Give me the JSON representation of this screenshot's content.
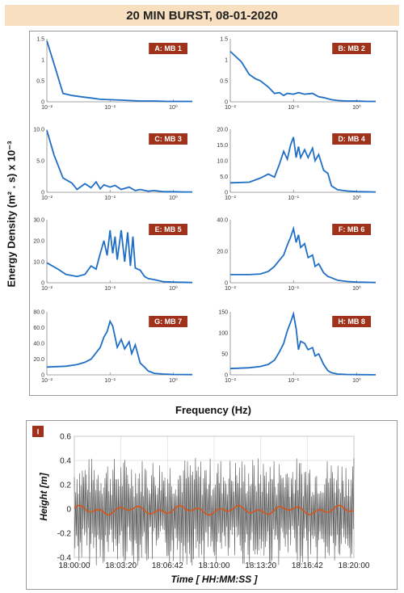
{
  "banner": {
    "title": "20 MIN BURST, 08-01-2020",
    "color": "#f7dfc0"
  },
  "colors": {
    "spectrum_line": "#1f6fc6",
    "tag_bg": "#a0311a",
    "raw_height": "#555555",
    "smoothed_height": "#d4561a"
  },
  "axes": {
    "ylabel": "Energy Density (m² . s) x 10⁻³",
    "xlabel": "Frequency (Hz)"
  },
  "chart_data": [
    {
      "type": "line",
      "label": "A: MB 1",
      "xscale": "log",
      "xlim": [
        0.01,
        2
      ],
      "ylim": [
        0,
        1.5
      ],
      "yticks": [
        "0",
        "0.5",
        "1",
        "1.5"
      ],
      "xticks": [
        "10⁻²",
        "10⁻¹",
        "10⁰"
      ],
      "x": [
        0.01,
        0.013,
        0.018,
        0.025,
        0.035,
        0.05,
        0.07,
        0.1,
        0.15,
        0.2,
        0.3,
        0.5,
        0.8,
        1.2,
        2
      ],
      "y": [
        1.45,
        0.9,
        0.2,
        0.15,
        0.12,
        0.09,
        0.06,
        0.05,
        0.04,
        0.03,
        0.02,
        0.02,
        0.01,
        0.01,
        0.01
      ]
    },
    {
      "type": "line",
      "label": "B: MB 2",
      "xscale": "log",
      "xlim": [
        0.01,
        2
      ],
      "ylim": [
        0,
        1.5
      ],
      "yticks": [
        "0",
        "0.5",
        "1",
        "1.5"
      ],
      "xticks": [
        "10⁻²",
        "10⁻¹",
        "10⁰"
      ],
      "x": [
        0.01,
        0.015,
        0.02,
        0.025,
        0.03,
        0.04,
        0.05,
        0.06,
        0.07,
        0.08,
        0.1,
        0.12,
        0.15,
        0.2,
        0.25,
        0.3,
        0.4,
        0.5,
        0.7,
        1,
        1.5,
        2
      ],
      "y": [
        1.2,
        0.95,
        0.65,
        0.55,
        0.5,
        0.35,
        0.2,
        0.22,
        0.15,
        0.2,
        0.18,
        0.22,
        0.18,
        0.2,
        0.12,
        0.1,
        0.05,
        0.03,
        0.02,
        0.02,
        0.01,
        0.01
      ]
    },
    {
      "type": "line",
      "label": "C: MB 3",
      "xscale": "log",
      "xlim": [
        0.01,
        2
      ],
      "ylim": [
        0,
        11
      ],
      "yticks": [
        "0",
        "5.0",
        "10.0"
      ],
      "xticks": [
        "10⁻²",
        "10⁻¹",
        "10⁰"
      ],
      "x": [
        0.01,
        0.013,
        0.018,
        0.025,
        0.03,
        0.04,
        0.05,
        0.06,
        0.07,
        0.08,
        0.1,
        0.12,
        0.15,
        0.2,
        0.25,
        0.3,
        0.4,
        0.5,
        0.7,
        1,
        1.5,
        2
      ],
      "y": [
        10.8,
        6.5,
        2.5,
        1.6,
        0.5,
        1.5,
        0.8,
        1.8,
        0.6,
        1.3,
        0.9,
        1.2,
        0.5,
        0.9,
        0.3,
        0.5,
        0.2,
        0.3,
        0.1,
        0.1,
        0.05,
        0.05
      ]
    },
    {
      "type": "line",
      "label": "D: MB 4",
      "xscale": "log",
      "xlim": [
        0.01,
        2
      ],
      "ylim": [
        0,
        20
      ],
      "yticks": [
        "0",
        "5.0",
        "10.0",
        "15.0",
        "20.0"
      ],
      "xticks": [
        "10⁻²",
        "10⁻¹",
        "10⁰"
      ],
      "x": [
        0.01,
        0.02,
        0.03,
        0.04,
        0.05,
        0.06,
        0.07,
        0.08,
        0.09,
        0.1,
        0.11,
        0.12,
        0.13,
        0.15,
        0.17,
        0.2,
        0.22,
        0.25,
        0.3,
        0.35,
        0.4,
        0.5,
        0.7,
        1,
        2
      ],
      "y": [
        3,
        3.2,
        4.5,
        5.8,
        4.8,
        9,
        13,
        10.5,
        15,
        17.5,
        11,
        14.5,
        11,
        13.5,
        11,
        14,
        10,
        12,
        7,
        6,
        2,
        0.8,
        0.4,
        0.2,
        0.1
      ]
    },
    {
      "type": "line",
      "label": "E: MB 5",
      "xscale": "log",
      "xlim": [
        0.01,
        2
      ],
      "ylim": [
        0,
        30
      ],
      "yticks": [
        "0",
        "10.0",
        "20.0",
        "30.0"
      ],
      "xticks": [
        "10⁻²",
        "10⁻¹",
        "10⁰"
      ],
      "x": [
        0.01,
        0.015,
        0.02,
        0.03,
        0.04,
        0.05,
        0.06,
        0.07,
        0.08,
        0.09,
        0.1,
        0.11,
        0.12,
        0.13,
        0.15,
        0.17,
        0.19,
        0.21,
        0.23,
        0.25,
        0.3,
        0.35,
        0.4,
        0.5,
        0.7,
        1,
        2
      ],
      "y": [
        9.5,
        6.5,
        4,
        3,
        4,
        8,
        6.5,
        14,
        20,
        13,
        25,
        14,
        22,
        11,
        25,
        10,
        24,
        8,
        22,
        7,
        6,
        3,
        2,
        1.5,
        0.5,
        0.3,
        0.1
      ]
    },
    {
      "type": "line",
      "label": "F: MB 6",
      "xscale": "log",
      "xlim": [
        0.01,
        2
      ],
      "ylim": [
        0,
        50
      ],
      "yticks": [
        "0",
        "20.0",
        "40.0"
      ],
      "xticks": [
        "10⁻²",
        "10⁻¹",
        "10⁰"
      ],
      "x": [
        0.01,
        0.02,
        0.03,
        0.04,
        0.05,
        0.06,
        0.07,
        0.08,
        0.09,
        0.1,
        0.11,
        0.12,
        0.13,
        0.15,
        0.17,
        0.2,
        0.22,
        0.25,
        0.3,
        0.35,
        0.4,
        0.5,
        0.7,
        1,
        2
      ],
      "y": [
        6.5,
        6.5,
        7,
        9,
        13,
        18,
        22,
        30,
        36,
        43,
        32,
        38,
        28,
        31,
        20,
        22,
        13,
        15,
        8,
        5,
        4,
        2,
        1,
        0.5,
        0.2
      ]
    },
    {
      "type": "line",
      "label": "G: MB 7",
      "xscale": "log",
      "xlim": [
        0.01,
        2
      ],
      "ylim": [
        0,
        80
      ],
      "yticks": [
        "0",
        "20.0",
        "40.0",
        "60.0",
        "80.0"
      ],
      "xticks": [
        "10⁻²",
        "10⁻¹",
        "10⁰"
      ],
      "x": [
        0.01,
        0.02,
        0.03,
        0.04,
        0.05,
        0.06,
        0.07,
        0.08,
        0.09,
        0.1,
        0.11,
        0.12,
        0.13,
        0.15,
        0.17,
        0.2,
        0.22,
        0.25,
        0.3,
        0.35,
        0.4,
        0.5,
        0.7,
        1,
        2
      ],
      "y": [
        10,
        11,
        13,
        16,
        20,
        28,
        35,
        48,
        55,
        68,
        62,
        48,
        35,
        45,
        33,
        42,
        27,
        38,
        15,
        10,
        5,
        2,
        1,
        0.5,
        0.3
      ]
    },
    {
      "type": "line",
      "label": "H: MB 8",
      "xscale": "log",
      "xlim": [
        0.01,
        2
      ],
      "ylim": [
        0,
        150
      ],
      "yticks": [
        "0",
        "50",
        "100",
        "150"
      ],
      "xticks": [
        "10⁻²",
        "10⁻¹",
        "10⁰"
      ],
      "x": [
        0.01,
        0.02,
        0.03,
        0.04,
        0.05,
        0.06,
        0.07,
        0.08,
        0.09,
        0.1,
        0.11,
        0.12,
        0.13,
        0.15,
        0.17,
        0.2,
        0.22,
        0.25,
        0.3,
        0.35,
        0.4,
        0.5,
        0.7,
        1,
        2
      ],
      "y": [
        15,
        17,
        20,
        25,
        35,
        55,
        75,
        105,
        125,
        145,
        110,
        60,
        80,
        75,
        60,
        65,
        45,
        50,
        25,
        10,
        5,
        2,
        1,
        0.5,
        0.2
      ]
    },
    {
      "type": "line",
      "label": "I",
      "xlabel": "Time [ HH:MM:SS ]",
      "ylabel": "Height [m]",
      "xticks": [
        "18:00:00",
        "18:03:20",
        "18:06:42",
        "18:10:00",
        "18:13:20",
        "18:16:42",
        "18:20:00"
      ],
      "yticks": [
        "-0.4",
        "-0.2",
        "0",
        "0.2",
        "0.4",
        "0.6"
      ],
      "ylim": [
        -0.4,
        0.6
      ],
      "series": [
        {
          "description_only": true
        },
        {
          "description_only": true
        }
      ]
    }
  ]
}
